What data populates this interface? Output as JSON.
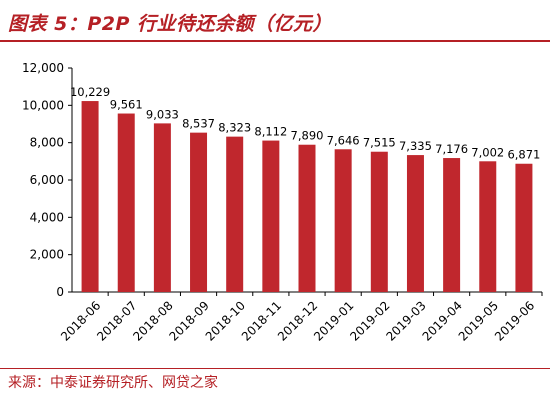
{
  "header": {
    "title": "图表 5：P2P 行业待还余额（亿元）"
  },
  "footer": {
    "source": "来源：中泰证券研究所、网贷之家"
  },
  "colors": {
    "accent": "#b52025",
    "bar": "#c0272d"
  },
  "chart_data": {
    "type": "bar",
    "title": "图表 5：P2P 行业待还余额（亿元）",
    "xlabel": "",
    "ylabel": "",
    "categories": [
      "2018-06",
      "2018-07",
      "2018-08",
      "2018-09",
      "2018-10",
      "2018-11",
      "2018-12",
      "2019-01",
      "2019-02",
      "2019-03",
      "2019-04",
      "2019-05",
      "2019-06"
    ],
    "values": [
      10229,
      9561,
      9033,
      8537,
      8323,
      8112,
      7890,
      7646,
      7515,
      7335,
      7176,
      7002,
      6871
    ],
    "value_labels": [
      "10,229",
      "9,561",
      "9,033",
      "8,537",
      "8,323",
      "8,112",
      "7,890",
      "7,646",
      "7,515",
      "7,335",
      "7,176",
      "7,002",
      "6,871"
    ],
    "ylim": [
      0,
      12000
    ],
    "yticks": [
      0,
      2000,
      4000,
      6000,
      8000,
      10000,
      12000
    ],
    "ytick_labels": [
      "0",
      "2,000",
      "4,000",
      "6,000",
      "8,000",
      "10,000",
      "12,000"
    ],
    "grid": false,
    "legend": "none"
  }
}
